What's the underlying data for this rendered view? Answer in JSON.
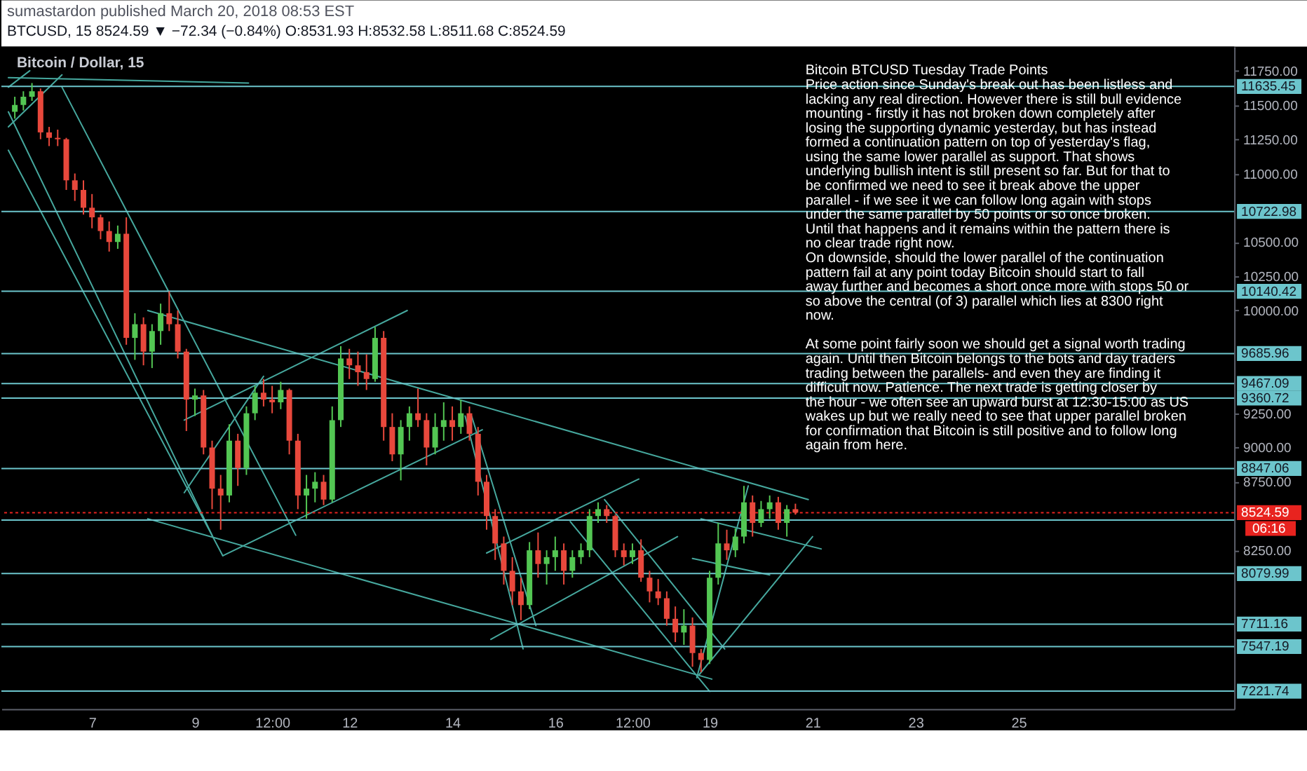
{
  "chart_data": {
    "type": "candlestick",
    "title": "sumastardon published March 20, 2018 08:53 EST",
    "subtitle": "BTCUSD, 15 8524.59 ▼ −72.34 (−0.84%) O:8531.93 H:8532.58 L:8511.68 C:8524.59",
    "annotations": [
      "Bitcoin / Dollar, 15",
      "Bitcoin  BTCUSD  Tuesday Trade Points\nPrice action since Sunday's break out has been listless and\nlacking any real direction. However there is still bull evidence\nmounting - firstly it has not broken down completely after\nlosing the supporting dynamic yesterday, but has instead\nformed a continuation pattern on top of yesterday's flag,\nusing the same lower parallel as support. That shows\nunderlying bullish intent is still present so far. But for that to\nbe confirmed we need to see it break above the upper\nparallel - if we see it we can follow long again with stops\nunder the same parallel by 50 points or so once broken.\nUntil that happens and it remains within the pattern there is\nno clear trade right now.\nOn downside, should the lower parallel of the continuation\npattern fail at any point today Bitcoin should start to fall\naway further and becomes a short once more with stops 50 or\nso above the central (of 3) parallel which lies at 8300 right\nnow.\n\nAt some point fairly soon we should get a signal worth trading\nagain. Until then Bitcoin belongs to the bots and day traders\ntrading between the parallels- and even they are finding it\ndifficult now. Patience. The next trade is getting closer by\nthe hour - we often see an upward burst at 12:30-15:00 as US\nwakes up but we really need to see that upper parallel broken\nfor confirmation that Bitcoin is still positive and to follow long\nagain from here.",
      "06:16"
    ],
    "x": [
      "2018-03-05T12:00",
      "2018-03-05T16:00",
      "2018-03-05T20:00",
      "2018-03-06T00:00",
      "2018-03-06T04:00",
      "2018-03-06T08:00",
      "2018-03-06T12:00",
      "2018-03-06T16:00",
      "2018-03-06T20:00",
      "2018-03-07T00:00",
      "2018-03-07T04:00",
      "2018-03-07T08:00",
      "2018-03-07T12:00",
      "2018-03-07T16:00",
      "2018-03-07T20:00",
      "2018-03-08T00:00",
      "2018-03-08T04:00",
      "2018-03-08T08:00",
      "2018-03-08T12:00",
      "2018-03-08T16:00",
      "2018-03-08T20:00",
      "2018-03-09T00:00",
      "2018-03-09T04:00",
      "2018-03-09T08:00",
      "2018-03-09T12:00",
      "2018-03-09T16:00",
      "2018-03-09T20:00",
      "2018-03-10T00:00",
      "2018-03-10T04:00",
      "2018-03-10T08:00",
      "2018-03-10T12:00",
      "2018-03-10T16:00",
      "2018-03-10T20:00",
      "2018-03-11T00:00",
      "2018-03-11T04:00",
      "2018-03-11T08:00",
      "2018-03-11T12:00",
      "2018-03-11T16:00",
      "2018-03-11T20:00",
      "2018-03-12T00:00",
      "2018-03-12T04:00",
      "2018-03-12T08:00",
      "2018-03-12T12:00",
      "2018-03-12T16:00",
      "2018-03-12T20:00",
      "2018-03-13T00:00",
      "2018-03-13T04:00",
      "2018-03-13T08:00",
      "2018-03-13T12:00",
      "2018-03-13T16:00",
      "2018-03-13T20:00",
      "2018-03-14T00:00",
      "2018-03-14T04:00",
      "2018-03-14T08:00",
      "2018-03-14T12:00",
      "2018-03-14T16:00",
      "2018-03-14T20:00",
      "2018-03-15T00:00",
      "2018-03-15T04:00",
      "2018-03-15T08:00",
      "2018-03-15T12:00",
      "2018-03-15T16:00",
      "2018-03-15T20:00",
      "2018-03-16T00:00",
      "2018-03-16T04:00",
      "2018-03-16T08:00",
      "2018-03-16T12:00",
      "2018-03-16T16:00",
      "2018-03-16T20:00",
      "2018-03-17T00:00",
      "2018-03-17T04:00",
      "2018-03-17T08:00",
      "2018-03-17T12:00",
      "2018-03-17T16:00",
      "2018-03-17T20:00",
      "2018-03-18T00:00",
      "2018-03-18T04:00",
      "2018-03-18T08:00",
      "2018-03-18T12:00",
      "2018-03-18T16:00",
      "2018-03-18T20:00",
      "2018-03-19T00:00",
      "2018-03-19T04:00",
      "2018-03-19T08:00",
      "2018-03-19T12:00",
      "2018-03-19T16:00",
      "2018-03-19T20:00",
      "2018-03-20T00:00",
      "2018-03-20T04:00",
      "2018-03-20T08:00",
      "2018-03-20T12:00",
      "2018-03-20T16:00"
    ],
    "ohlc": [
      [
        11450,
        11560,
        11400,
        11500
      ],
      [
        11500,
        11600,
        11460,
        11560
      ],
      [
        11560,
        11660,
        11530,
        11600
      ],
      [
        11600,
        11620,
        11250,
        11300
      ],
      [
        11300,
        11340,
        11200,
        11260
      ],
      [
        11260,
        11320,
        11200,
        11250
      ],
      [
        11250,
        11260,
        10880,
        10950
      ],
      [
        10950,
        11000,
        10800,
        10880
      ],
      [
        10880,
        10950,
        10700,
        10750
      ],
      [
        10750,
        10850,
        10600,
        10680
      ],
      [
        10680,
        10700,
        10520,
        10580
      ],
      [
        10580,
        10650,
        10430,
        10500
      ],
      [
        10500,
        10620,
        10450,
        10560
      ],
      [
        10560,
        10680,
        9750,
        9800
      ],
      [
        9800,
        9980,
        9640,
        9900
      ],
      [
        9900,
        9950,
        9600,
        9700
      ],
      [
        9700,
        9900,
        9580,
        9850
      ],
      [
        9850,
        10050,
        9750,
        9980
      ],
      [
        9980,
        10140,
        9850,
        9900
      ],
      [
        9900,
        10000,
        9650,
        9700
      ],
      [
        9700,
        9720,
        9120,
        9350
      ],
      [
        9350,
        9430,
        9230,
        9380
      ],
      [
        9380,
        9420,
        8950,
        9000
      ],
      [
        9000,
        9050,
        8550,
        8700
      ],
      [
        8700,
        8800,
        8400,
        8650
      ],
      [
        8650,
        9170,
        8600,
        9050
      ],
      [
        9050,
        9100,
        8720,
        8850
      ],
      [
        8850,
        9300,
        8800,
        9250
      ],
      [
        9250,
        9450,
        9200,
        9400
      ],
      [
        9400,
        9500,
        9300,
        9350
      ],
      [
        9350,
        9450,
        9250,
        9330
      ],
      [
        9330,
        9480,
        9280,
        9420
      ],
      [
        9420,
        9430,
        8950,
        9050
      ],
      [
        9050,
        9100,
        8550,
        8650
      ],
      [
        8650,
        8800,
        8480,
        8700
      ],
      [
        8700,
        8820,
        8600,
        8750
      ],
      [
        8750,
        8800,
        8580,
        8620
      ],
      [
        8620,
        9300,
        8600,
        9200
      ],
      [
        9200,
        9740,
        9150,
        9650
      ],
      [
        9650,
        9720,
        9500,
        9600
      ],
      [
        9600,
        9700,
        9450,
        9550
      ],
      [
        9550,
        9680,
        9420,
        9500
      ],
      [
        9500,
        9880,
        9480,
        9800
      ],
      [
        9800,
        9850,
        9050,
        9150
      ],
      [
        9150,
        9250,
        8900,
        8950
      ],
      [
        8950,
        9200,
        8760,
        9150
      ],
      [
        9150,
        9300,
        9050,
        9250
      ],
      [
        9250,
        9430,
        9150,
        9200
      ],
      [
        9200,
        9250,
        8870,
        9000
      ],
      [
        9000,
        9250,
        8950,
        9150
      ],
      [
        9150,
        9330,
        9050,
        9200
      ],
      [
        9200,
        9300,
        9050,
        9150
      ],
      [
        9150,
        9350,
        9100,
        9250
      ],
      [
        9250,
        9300,
        9050,
        9100
      ],
      [
        9100,
        9150,
        8650,
        8750
      ],
      [
        8750,
        8800,
        8400,
        8500
      ],
      [
        8500,
        8550,
        8180,
        8300
      ],
      [
        8300,
        8350,
        8000,
        8100
      ],
      [
        8100,
        8200,
        7850,
        7950
      ],
      [
        7950,
        8050,
        7740,
        7850
      ],
      [
        7850,
        8310,
        7820,
        8250
      ],
      [
        8250,
        8380,
        8050,
        8150
      ],
      [
        8150,
        8250,
        8000,
        8200
      ],
      [
        8200,
        8350,
        8100,
        8250
      ],
      [
        8250,
        8300,
        8000,
        8100
      ],
      [
        8100,
        8250,
        8050,
        8200
      ],
      [
        8200,
        8300,
        8150,
        8250
      ],
      [
        8250,
        8550,
        8200,
        8500
      ],
      [
        8500,
        8600,
        8450,
        8550
      ],
      [
        8550,
        8580,
        8450,
        8500
      ],
      [
        8500,
        8510,
        8200,
        8250
      ],
      [
        8250,
        8300,
        8140,
        8200
      ],
      [
        8200,
        8300,
        8150,
        8250
      ],
      [
        8250,
        8330,
        8020,
        8050
      ],
      [
        8050,
        8100,
        7870,
        7950
      ],
      [
        7950,
        8040,
        7850,
        7900
      ],
      [
        7900,
        7950,
        7700,
        7750
      ],
      [
        7750,
        7840,
        7580,
        7650
      ],
      [
        7650,
        7820,
        7560,
        7700
      ],
      [
        7700,
        7760,
        7400,
        7500
      ],
      [
        7500,
        7530,
        7360,
        7450
      ],
      [
        7450,
        8100,
        7420,
        8050
      ],
      [
        8050,
        8450,
        8000,
        8300
      ],
      [
        8300,
        8400,
        8180,
        8250
      ],
      [
        8250,
        8410,
        8200,
        8350
      ],
      [
        8350,
        8720,
        8300,
        8600
      ],
      [
        8600,
        8650,
        8350,
        8450
      ],
      [
        8450,
        8610,
        8420,
        8550
      ],
      [
        8550,
        8650,
        8480,
        8600
      ],
      [
        8600,
        8640,
        8400,
        8450
      ],
      [
        8450,
        8580,
        8350,
        8550
      ],
      [
        8550,
        8590,
        8510,
        8524.59
      ]
    ],
    "colors": [
      "#53c653",
      "#53c653",
      "#53c653",
      "#e8483c",
      "#e8483c",
      "#e8483c",
      "#e8483c",
      "#e8483c",
      "#e8483c",
      "#e8483c",
      "#e8483c",
      "#e8483c",
      "#53c653",
      "#e8483c",
      "#53c653",
      "#e8483c",
      "#53c653",
      "#53c653",
      "#e8483c",
      "#e8483c",
      "#e8483c",
      "#53c653",
      "#e8483c",
      "#e8483c",
      "#e8483c",
      "#53c653",
      "#e8483c",
      "#53c653",
      "#53c653",
      "#e8483c",
      "#e8483c",
      "#53c653",
      "#e8483c",
      "#e8483c",
      "#53c653",
      "#53c653",
      "#e8483c",
      "#53c653",
      "#53c653",
      "#e8483c",
      "#e8483c",
      "#e8483c",
      "#53c653",
      "#e8483c",
      "#e8483c",
      "#53c653",
      "#53c653",
      "#e8483c",
      "#e8483c",
      "#53c653",
      "#53c653",
      "#e8483c",
      "#53c653",
      "#e8483c",
      "#e8483c",
      "#e8483c",
      "#e8483c",
      "#e8483c",
      "#e8483c",
      "#e8483c",
      "#53c653",
      "#e8483c",
      "#53c653",
      "#53c653",
      "#e8483c",
      "#53c653",
      "#53c653",
      "#53c653",
      "#53c653",
      "#e8483c",
      "#e8483c",
      "#e8483c",
      "#53c653",
      "#e8483c",
      "#e8483c",
      "#e8483c",
      "#e8483c",
      "#e8483c",
      "#53c653",
      "#e8483c",
      "#e8483c",
      "#53c653",
      "#53c653",
      "#e8483c",
      "#53c653",
      "#53c653",
      "#e8483c",
      "#53c653",
      "#53c653",
      "#e8483c",
      "#53c653",
      "#e8483c"
    ],
    "series": [
      {
        "type": "line",
        "color": "#46a89e",
        "x": [
          "2018-03-05T09:00",
          "2018-03-10T01:00"
        ],
        "values": [
          11700,
          11660
        ]
      },
      {
        "type": "line",
        "color": "#46a89e",
        "x": [
          "2018-03-05T09:00",
          "2018-03-05T19:00"
        ],
        "values": [
          11630,
          11750
        ]
      },
      {
        "type": "line",
        "color": "#46a89e",
        "x": [
          "2018-03-05T09:00",
          "2018-03-06T10:00"
        ],
        "values": [
          11340,
          11720
        ]
      },
      {
        "type": "line",
        "color": "#46a89e",
        "x": [
          "2018-03-06T10:00",
          "2018-03-10T23:00"
        ],
        "values": [
          11630,
          8360
        ]
      },
      {
        "type": "line",
        "color": "#46a89e",
        "x": [
          "2018-03-05T09:00",
          "2018-03-09T08:00"
        ],
        "values": [
          11450,
          8360
        ]
      },
      {
        "type": "line",
        "color": "#46a89e",
        "x": [
          "2018-03-05T09:00",
          "2018-03-09T13:00"
        ],
        "values": [
          11170,
          8210
        ]
      },
      {
        "type": "line",
        "color": "#46a89e",
        "x": [
          "2018-03-08T02:00",
          "2018-03-20T22:00"
        ],
        "values": [
          10000,
          8620
        ]
      },
      {
        "type": "line",
        "color": "#46a89e",
        "x": [
          "2018-03-08T02:00",
          "2018-03-19T01:00"
        ],
        "values": [
          8480,
          7310
        ]
      },
      {
        "type": "line",
        "color": "#46a89e",
        "x": [
          "2018-03-08T19:00",
          "2018-03-13T03:00"
        ],
        "values": [
          9200,
          10000
        ]
      },
      {
        "type": "line",
        "color": "#46a89e",
        "x": [
          "2018-03-09T13:00",
          "2018-03-14T14:00"
        ],
        "values": [
          8210,
          9130
        ]
      },
      {
        "type": "line",
        "color": "#46a89e",
        "x": [
          "2018-03-08T19:00",
          "2018-03-10T08:00"
        ],
        "values": [
          8670,
          9520
        ]
      },
      {
        "type": "line",
        "color": "#46a89e",
        "x": [
          "2018-03-14T06:00",
          "2018-03-15T09:00"
        ],
        "values": [
          9230,
          7530
        ]
      },
      {
        "type": "line",
        "color": "#46a89e",
        "x": [
          "2018-03-14T09:00",
          "2018-03-15T15:00"
        ],
        "values": [
          9230,
          7700
        ]
      },
      {
        "type": "line",
        "color": "#46a89e",
        "x": [
          "2018-03-14T16:00",
          "2018-03-17T15:00"
        ],
        "values": [
          8230,
          8770
        ]
      },
      {
        "type": "line",
        "color": "#46a89e",
        "x": [
          "2018-03-14T18:00",
          "2018-03-18T09:00"
        ],
        "values": [
          7600,
          8350
        ]
      },
      {
        "type": "line",
        "color": "#46a89e",
        "x": [
          "2018-03-16T07:00",
          "2018-03-19T00:00"
        ],
        "values": [
          8460,
          7220
        ]
      },
      {
        "type": "line",
        "color": "#46a89e",
        "x": [
          "2018-03-16T23:00",
          "2018-03-19T07:00"
        ],
        "values": [
          8620,
          7530
        ]
      },
      {
        "type": "line",
        "color": "#46a89e",
        "x": [
          "2018-03-18T18:00",
          "2018-03-19T18:00"
        ],
        "values": [
          7320,
          8720
        ]
      },
      {
        "type": "line",
        "color": "#46a89e",
        "x": [
          "2018-03-18T19:00",
          "2018-03-21T00:00"
        ],
        "values": [
          7340,
          8350
        ]
      },
      {
        "type": "line",
        "color": "#46a89e",
        "x": [
          "2018-03-18T20:00",
          "2018-03-21T04:00"
        ],
        "values": [
          8480,
          8260
        ]
      },
      {
        "type": "line",
        "color": "#46a89e",
        "x": [
          "2018-03-18T16:00",
          "2018-03-20T04:00"
        ],
        "values": [
          8190,
          8070
        ]
      }
    ],
    "ref_lines": [
      {
        "axis": "y",
        "value": 11635.45,
        "label": "11635.45",
        "color": "#6cc5cc"
      },
      {
        "axis": "y",
        "value": 10722.98,
        "label": "10722.98",
        "color": "#6cc5cc"
      },
      {
        "axis": "y",
        "value": 10140.42,
        "label": "10140.42",
        "color": "#6cc5cc"
      },
      {
        "axis": "y",
        "value": 9685.96,
        "label": "9685.96",
        "color": "#6cc5cc"
      },
      {
        "axis": "y",
        "value": 9467.09,
        "label": "9467.09",
        "color": "#6cc5cc"
      },
      {
        "axis": "y",
        "value": 9360.72,
        "label": "9360.72",
        "color": "#6cc5cc"
      },
      {
        "axis": "y",
        "value": 8847.06,
        "label": "8847.06",
        "color": "#6cc5cc"
      },
      {
        "axis": "y",
        "value": 8524.59,
        "label": "8524.59",
        "color": "#e8231f",
        "line_style": "dotted"
      },
      {
        "axis": "y",
        "value": 8470,
        "label": null,
        "color": "#6cc5cc"
      },
      {
        "axis": "y",
        "value": 8079.99,
        "label": "8079.99",
        "color": "#6cc5cc"
      },
      {
        "axis": "y",
        "value": 7711.16,
        "label": "7711.16",
        "color": "#6cc5cc"
      },
      {
        "axis": "y",
        "value": 7547.19,
        "label": "7547.19",
        "color": "#6cc5cc"
      },
      {
        "axis": "y",
        "value": 7221.74,
        "label": "7221.74",
        "color": "#6cc5cc"
      }
    ],
    "xlim": [
      "2018-03-05T05:45",
      "2018-03-29T04:35"
    ],
    "xticks": [
      {
        "value": "2018-03-07T00:00",
        "label": "7"
      },
      {
        "value": "2018-03-09T00:00",
        "label": "9"
      },
      {
        "value": "2018-03-10T12:00",
        "label": "12:00"
      },
      {
        "value": "2018-03-12T00:00",
        "label": "12"
      },
      {
        "value": "2018-03-14T00:00",
        "label": "14"
      },
      {
        "value": "2018-03-16T00:00",
        "label": "16"
      },
      {
        "value": "2018-03-17T12:00",
        "label": "12:00"
      },
      {
        "value": "2018-03-19T00:00",
        "label": "19"
      },
      {
        "value": "2018-03-21T00:00",
        "label": "21"
      },
      {
        "value": "2018-03-23T00:00",
        "label": "23"
      },
      {
        "value": "2018-03-25T00:00",
        "label": "25"
      }
    ],
    "ylim": [
      7092,
      11926
    ],
    "yticks": [
      {
        "value": 11750,
        "label": "11750.00"
      },
      {
        "value": 11500,
        "label": "11500.00"
      },
      {
        "value": 11250,
        "label": "11250.00"
      },
      {
        "value": 11000,
        "label": "11000.00"
      },
      {
        "value": 10500,
        "label": "10500.00"
      },
      {
        "value": 10250,
        "label": "10250.00"
      },
      {
        "value": 10000,
        "label": "10000.00"
      },
      {
        "value": 9250,
        "label": "9250.00"
      },
      {
        "value": 9000,
        "label": "9000.00"
      },
      {
        "value": 8750,
        "label": "8750.00"
      },
      {
        "value": 8250,
        "label": "8250.00"
      }
    ]
  }
}
